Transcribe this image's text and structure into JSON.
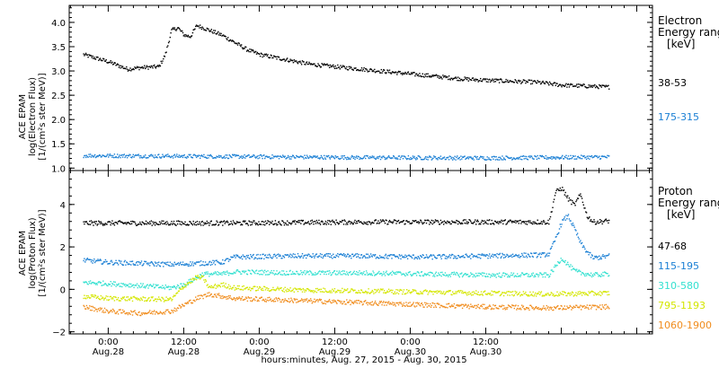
{
  "chart_data": [
    {
      "type": "scatter",
      "panel": "electron",
      "ylabel_lines": [
        "ACE EPAM",
        "log(Electron Flux)",
        "[1/(cm²s ster MeV)]"
      ],
      "ylim": [
        0.95,
        4.35
      ],
      "yticks": [
        "1.0",
        "1.5",
        "2.0",
        "2.5",
        "3.0",
        "3.5",
        "4.0"
      ],
      "ytick_values": [
        1.0,
        1.5,
        2.0,
        2.5,
        3.0,
        3.5,
        4.0
      ],
      "legend_title_lines": [
        "Electron",
        "Energy ranges",
        "[keV]"
      ],
      "series": [
        {
          "name": "38-53",
          "color": "#000000",
          "x": [
            -4,
            0,
            3,
            5,
            8,
            9,
            10,
            11,
            12,
            13,
            14,
            16,
            18,
            20,
            22,
            24,
            28,
            32,
            36,
            40,
            44,
            48,
            52,
            56,
            60,
            64,
            68,
            72,
            76,
            79.5
          ],
          "y": [
            3.35,
            3.2,
            3.05,
            3.08,
            3.1,
            3.35,
            3.85,
            3.9,
            3.75,
            3.72,
            3.95,
            3.85,
            3.75,
            3.6,
            3.45,
            3.35,
            3.25,
            3.15,
            3.1,
            3.05,
            3.0,
            2.95,
            2.9,
            2.85,
            2.82,
            2.8,
            2.78,
            2.72,
            2.7,
            2.68
          ]
        },
        {
          "name": "175-315",
          "color": "#1a7fd4",
          "x": [
            -4,
            20,
            40,
            60,
            79.5
          ],
          "y": [
            1.27,
            1.25,
            1.23,
            1.22,
            1.24
          ]
        }
      ]
    },
    {
      "type": "scatter",
      "panel": "proton",
      "ylabel_lines": [
        "ACE EPAM",
        "log(Proton Flux)",
        "[1/(cm²s ster MeV)]"
      ],
      "ylim": [
        -2.1,
        5.6
      ],
      "yticks": [
        "−2",
        "0",
        "2",
        "4"
      ],
      "ytick_values": [
        -2,
        0,
        2,
        4
      ],
      "legend_title_lines": [
        "Proton",
        "Energy ranges",
        "[keV]"
      ],
      "series": [
        {
          "name": "47-68",
          "color": "#000000",
          "x": [
            -4,
            20,
            40,
            60,
            69,
            70,
            71,
            72,
            73,
            74,
            75,
            76,
            77,
            79.5
          ],
          "y": [
            3.15,
            3.15,
            3.2,
            3.2,
            3.2,
            3.2,
            4.6,
            4.8,
            4.3,
            4.0,
            4.5,
            3.5,
            3.2,
            3.25
          ]
        },
        {
          "name": "115-195",
          "color": "#1a7fd4",
          "x": [
            -4,
            0,
            10,
            18,
            20,
            30,
            40,
            50,
            60,
            69,
            70,
            71,
            72,
            73,
            74,
            75,
            76,
            77,
            79.5
          ],
          "y": [
            1.4,
            1.3,
            1.2,
            1.3,
            1.55,
            1.6,
            1.6,
            1.55,
            1.6,
            1.65,
            1.7,
            2.4,
            3.2,
            3.5,
            2.9,
            2.2,
            1.8,
            1.5,
            1.6
          ]
        },
        {
          "name": "310-580",
          "color": "#33e0d0",
          "x": [
            -4,
            0,
            10,
            12,
            15,
            18,
            20,
            30,
            40,
            50,
            60,
            69,
            70,
            71,
            72,
            73,
            74,
            75,
            77,
            79.5
          ],
          "y": [
            0.35,
            0.3,
            0.1,
            0.25,
            0.75,
            0.75,
            0.85,
            0.8,
            0.8,
            0.75,
            0.7,
            0.7,
            0.7,
            1.1,
            1.5,
            1.2,
            0.9,
            0.8,
            0.7,
            0.75
          ]
        },
        {
          "name": "795-1193",
          "color": "#d4e600",
          "x": [
            -4,
            0,
            10,
            12,
            14,
            15,
            16,
            18,
            20,
            30,
            40,
            50,
            60,
            70,
            79.5
          ],
          "y": [
            -0.3,
            -0.4,
            -0.45,
            0.2,
            0.6,
            0.55,
            0.1,
            0.25,
            0.1,
            0.0,
            -0.05,
            -0.1,
            -0.15,
            -0.2,
            -0.15
          ]
        },
        {
          "name": "1060-1900",
          "color": "#f08c1c",
          "x": [
            -4,
            0,
            5,
            10,
            14,
            16,
            18,
            20,
            30,
            40,
            50,
            60,
            70,
            79.5
          ],
          "y": [
            -0.8,
            -1.0,
            -1.1,
            -1.0,
            -0.4,
            -0.2,
            -0.3,
            -0.4,
            -0.5,
            -0.6,
            -0.7,
            -0.8,
            -0.85,
            -0.8
          ]
        }
      ]
    }
  ],
  "x_axis": {
    "xlim": [
      -6.2,
      86.5
    ],
    "ticks": [
      {
        "time": "0:00",
        "date": "Aug.28",
        "hour": 0
      },
      {
        "time": "12:00",
        "date": "Aug.28",
        "hour": 12
      },
      {
        "time": "0:00",
        "date": "Aug.29",
        "hour": 24
      },
      {
        "time": "12:00",
        "date": "Aug.29",
        "hour": 36
      },
      {
        "time": "0:00",
        "date": "Aug.30",
        "hour": 48
      },
      {
        "time": "12:00",
        "date": "Aug.30",
        "hour": 60
      }
    ],
    "xlabel": "hours:minutes, Aug. 27, 2015 - Aug. 30, 2015"
  }
}
